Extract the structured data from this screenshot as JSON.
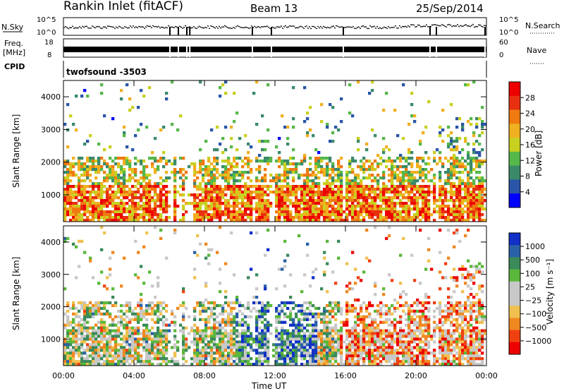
{
  "header": {
    "station": "Rankin Inlet (fitACF)",
    "beam": "Beam 13",
    "date": "25/Sep/2014"
  },
  "strips": {
    "nsky_label": "N.Sky",
    "nsky_ticks": [
      "10^5",
      "10^0"
    ],
    "nsearch_label": "N.Search",
    "freq_label_1": "Freq.",
    "freq_label_2": "[MHz]",
    "freq_ticks": [
      "18",
      "8"
    ],
    "nave_label": "Nave",
    "nave_ticks": [
      "60",
      "0"
    ],
    "cpid_label": "CPID",
    "cpid_value": "twofsound -3503"
  },
  "colors": {
    "power_scale": [
      "#0000ff",
      "#2a55a8",
      "#3a8a6a",
      "#55b84a",
      "#c8d020",
      "#f0b020",
      "#f07a10",
      "#e83010",
      "#ee0000"
    ],
    "velocity_scale": [
      "#ee0000",
      "#f04010",
      "#f08820",
      "#f0c050",
      "#c8c8c8",
      "#c8c8c8",
      "#5ab83a",
      "#3a8a5a",
      "#2a60a8",
      "#1030c8"
    ]
  },
  "chart_data": [
    {
      "type": "heatmap",
      "title": "",
      "ylabel": "Slant Range [km]",
      "xlabel": "",
      "ylim": [
        180,
        4500
      ],
      "y_ticks": [
        "1000",
        "2000",
        "3000",
        "4000"
      ],
      "colorbar_label": "Power [dB]",
      "colorbar_ticks": [
        "4",
        "8",
        "12",
        "16",
        "20",
        "24",
        "28"
      ],
      "clim": [
        0,
        30
      ]
    },
    {
      "type": "heatmap",
      "title": "",
      "ylabel": "Slant Range [km]",
      "xlabel": "Time UT",
      "x_ticks": [
        "00:00",
        "04:00",
        "08:00",
        "12:00",
        "16:00",
        "20:00",
        "00:00"
      ],
      "ylim": [
        180,
        4500
      ],
      "y_ticks": [
        "1000",
        "2000",
        "3000",
        "4000"
      ],
      "colorbar_label": "Velocity [m s⁻¹]",
      "colorbar_ticks": [
        "1000",
        "500",
        "100",
        "25",
        "−25",
        "−100",
        "−500",
        "−1000"
      ]
    }
  ]
}
